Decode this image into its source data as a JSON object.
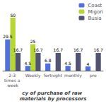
{
  "chart_data": {
    "type": "bar",
    "xlabel": "cy of purchase of raw materials by processors",
    "categories": [
      "2-3 times a week",
      "Weekly",
      "fortnight",
      "monthly",
      "pro"
    ],
    "series": [
      {
        "name": "Coast",
        "values": [
          29.5,
          4.5,
          6.8,
          4.5,
          4.0
        ]
      },
      {
        "name": "Migori",
        "values": [
          50,
          25,
          0,
          0,
          0
        ],
        "value_labels": [
          "50",
          "25",
          null,
          null,
          null
        ]
      },
      {
        "name": "Busia",
        "values": [
          16.7,
          16.7,
          16.7,
          16.7,
          16.7
        ]
      }
    ],
    "ylim": [
      0,
      60
    ],
    "data_labels": true,
    "tick_labels": "x",
    "grid": false,
    "legend": "upper right"
  }
}
